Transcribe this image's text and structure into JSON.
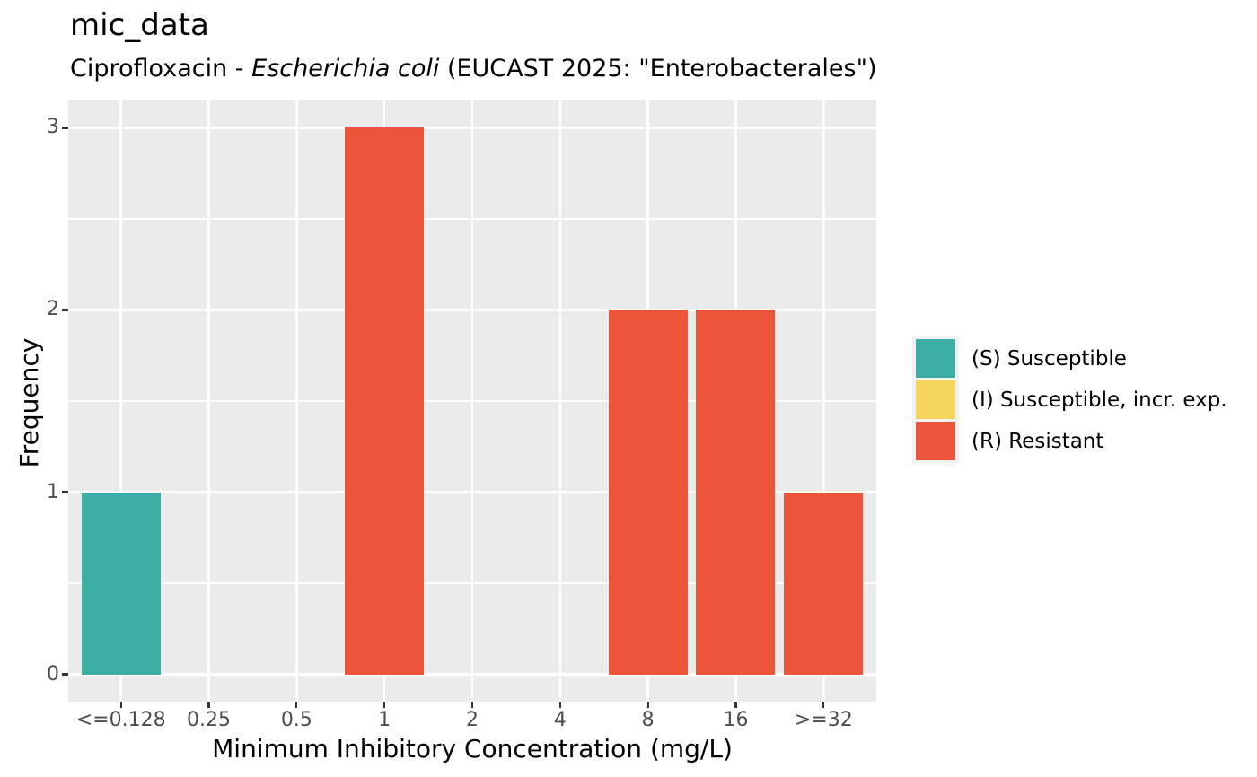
{
  "chart_data": {
    "type": "bar",
    "title": "mic_data",
    "subtitle": "Ciprofloxacin - Escherichia coli (EUCAST 2025: \"Enterobacterales\")",
    "subtitle_parts": {
      "prefix": "Ciprofloxacin - ",
      "italic": "Escherichia coli",
      "suffix": " (EUCAST 2025: \"Enterobacterales\")"
    },
    "xlabel": "Minimum Inhibitory Concentration (mg/L)",
    "ylabel": "Frequency",
    "categories": [
      "<=0.128",
      "0.25",
      "0.5",
      "1",
      "2",
      "4",
      "8",
      "16",
      ">=32"
    ],
    "values": [
      1,
      0,
      0,
      3,
      0,
      0,
      2,
      2,
      1
    ],
    "bar_sir": [
      "S",
      null,
      null,
      "R",
      null,
      null,
      "R",
      "R",
      "R"
    ],
    "ylim": [
      0,
      3
    ],
    "yticks": [
      0,
      1,
      2,
      3
    ],
    "grid": true,
    "legend_position": "right",
    "legend": [
      {
        "code": "S",
        "label": "(S) Susceptible",
        "color": "#3CAEA3"
      },
      {
        "code": "I",
        "label": "(I) Susceptible, incr. exp.",
        "color": "#F6D55C"
      },
      {
        "code": "R",
        "label": "(R) Resistant",
        "color": "#ED553B"
      }
    ],
    "style_colors": {
      "panel_background": "#EBEBEB",
      "grid": "#FFFFFF",
      "tick_text": "#4D4D4D",
      "tick_mark": "#333333",
      "axis_title": "#000000",
      "legend_key_background": "#F1F1F1"
    }
  }
}
